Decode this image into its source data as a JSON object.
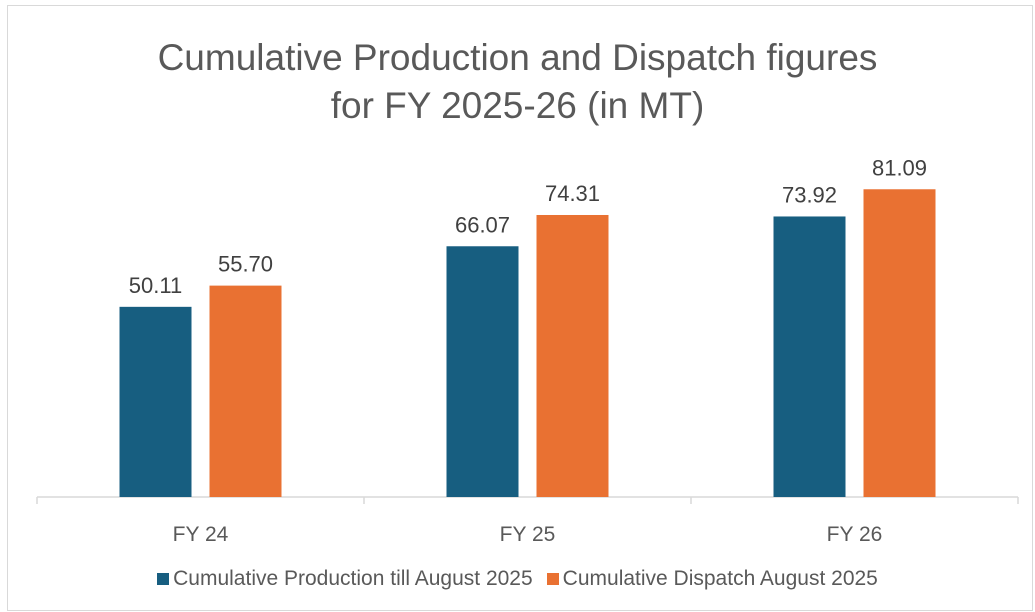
{
  "chart_data": {
    "type": "bar",
    "title_lines": [
      "Cumulative Production and Dispatch figures",
      "for FY 2025-26 (in MT)"
    ],
    "categories": [
      "FY 24",
      "FY 25",
      "FY 26"
    ],
    "series": [
      {
        "name": "Cumulative Production till August 2025",
        "color": "#175e80",
        "values": [
          50.11,
          66.07,
          73.92
        ],
        "labels": [
          "50.11",
          "66.07",
          "73.92"
        ]
      },
      {
        "name": "Cumulative Dispatch August 2025",
        "color": "#e97132",
        "values": [
          55.7,
          74.31,
          81.09
        ],
        "labels": [
          "55.70",
          "74.31",
          "81.09"
        ]
      }
    ],
    "xlabel": "",
    "ylabel": "",
    "ylim": [
      0,
      90
    ],
    "grid": false,
    "legend_position": "bottom"
  }
}
